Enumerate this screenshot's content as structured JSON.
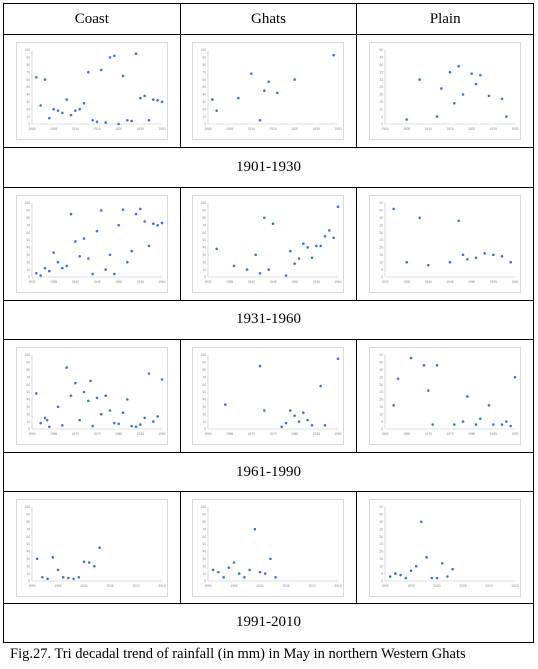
{
  "table": {
    "columns": [
      "Coast",
      "Ghats",
      "Plain"
    ]
  },
  "caption": "Fig.27. Tri decadal trend of rainfall (in mm) in May in northern Western Ghats",
  "periods": [
    {
      "label": "1901-1930",
      "charts": [
        {
          "type": "scatter",
          "region": "Coast",
          "xlim": [
            1900,
            1930
          ],
          "ylim": [
            0,
            100
          ],
          "xticks": [
            1900,
            1905,
            1910,
            1915,
            1920,
            1925,
            1930
          ],
          "yticks": [
            0,
            10,
            20,
            30,
            40,
            50,
            60,
            70,
            80,
            90,
            100
          ],
          "x": [
            1901,
            1902,
            1903,
            1904,
            1905,
            1906,
            1907,
            1908,
            1909,
            1910,
            1911,
            1912,
            1913,
            1914,
            1915,
            1916,
            1917,
            1918,
            1919,
            1920,
            1921,
            1922,
            1923,
            1924,
            1925,
            1926,
            1927,
            1928,
            1929,
            1930
          ],
          "y": [
            63,
            25,
            60,
            8,
            20,
            18,
            15,
            33,
            12,
            18,
            20,
            28,
            70,
            5,
            3,
            73,
            2,
            90,
            92,
            0,
            65,
            5,
            4,
            95,
            35,
            38,
            5,
            33,
            32,
            30
          ],
          "color": "#4472c4"
        },
        {
          "type": "scatter",
          "region": "Ghats",
          "xlim": [
            1900,
            1930
          ],
          "ylim": [
            0,
            100
          ],
          "xticks": [
            1900,
            1905,
            1910,
            1915,
            1920,
            1925,
            1930
          ],
          "yticks": [
            0,
            10,
            20,
            30,
            40,
            50,
            60,
            70,
            80,
            90,
            100
          ],
          "x": [
            1901,
            1902,
            1907,
            1910,
            1912,
            1913,
            1914,
            1916,
            1920,
            1929
          ],
          "y": [
            33,
            18,
            35,
            68,
            5,
            45,
            57,
            42,
            60,
            93
          ],
          "color": "#4472c4"
        },
        {
          "type": "scatter",
          "region": "Plain",
          "xlim": [
            1900,
            1930
          ],
          "ylim": [
            0,
            50
          ],
          "xticks": [
            1900,
            1905,
            1910,
            1915,
            1920,
            1925,
            1930
          ],
          "yticks": [
            0,
            5,
            10,
            15,
            20,
            25,
            30,
            35,
            40,
            45,
            50
          ],
          "x": [
            1905,
            1908,
            1912,
            1913,
            1915,
            1916,
            1917,
            1918,
            1920,
            1921,
            1922,
            1924,
            1927,
            1928
          ],
          "y": [
            3,
            30,
            5,
            24,
            35,
            14,
            39,
            20,
            34,
            27,
            33,
            19,
            17,
            5
          ],
          "color": "#4472c4"
        }
      ]
    },
    {
      "label": "1931-1960",
      "charts": [
        {
          "type": "scatter",
          "region": "Coast",
          "xlim": [
            1930,
            1960
          ],
          "ylim": [
            0,
            100
          ],
          "xticks": [
            1930,
            1935,
            1940,
            1945,
            1950,
            1955,
            1960
          ],
          "yticks": [
            0,
            10,
            20,
            30,
            40,
            50,
            60,
            70,
            80,
            90,
            100
          ],
          "x": [
            1931,
            1932,
            1933,
            1934,
            1935,
            1936,
            1937,
            1938,
            1939,
            1940,
            1941,
            1942,
            1943,
            1944,
            1945,
            1946,
            1947,
            1948,
            1949,
            1950,
            1951,
            1952,
            1953,
            1954,
            1955,
            1956,
            1957,
            1958,
            1959,
            1960
          ],
          "y": [
            5,
            2,
            12,
            8,
            33,
            20,
            12,
            15,
            85,
            48,
            28,
            52,
            25,
            4,
            62,
            90,
            10,
            30,
            4,
            70,
            91,
            20,
            35,
            85,
            92,
            75,
            42,
            72,
            70,
            73
          ],
          "color": "#4472c4"
        },
        {
          "type": "scatter",
          "region": "Ghats",
          "xlim": [
            1930,
            1960
          ],
          "ylim": [
            0,
            100
          ],
          "xticks": [
            1930,
            1935,
            1940,
            1945,
            1950,
            1955,
            1960
          ],
          "yticks": [
            0,
            10,
            20,
            30,
            40,
            50,
            60,
            70,
            80,
            90,
            100
          ],
          "x": [
            1932,
            1936,
            1939,
            1941,
            1942,
            1943,
            1944,
            1945,
            1948,
            1949,
            1950,
            1951,
            1952,
            1953,
            1954,
            1955,
            1956,
            1957,
            1958,
            1959,
            1960
          ],
          "y": [
            38,
            15,
            10,
            30,
            5,
            80,
            10,
            72,
            2,
            35,
            18,
            25,
            45,
            40,
            26,
            42,
            42,
            55,
            63,
            53,
            95
          ],
          "color": "#4472c4"
        },
        {
          "type": "scatter",
          "region": "Plain",
          "xlim": [
            1930,
            1960
          ],
          "ylim": [
            0,
            50
          ],
          "xticks": [
            1930,
            1935,
            1940,
            1945,
            1950,
            1955,
            1960
          ],
          "yticks": [
            0,
            5,
            10,
            15,
            20,
            25,
            30,
            35,
            40,
            45,
            50
          ],
          "x": [
            1932,
            1935,
            1938,
            1940,
            1945,
            1947,
            1948,
            1949,
            1951,
            1953,
            1955,
            1957,
            1959
          ],
          "y": [
            46,
            10,
            40,
            8,
            10,
            38,
            15,
            12,
            13,
            16,
            15,
            14,
            10
          ],
          "color": "#4472c4"
        }
      ]
    },
    {
      "label": "1961-1990",
      "charts": [
        {
          "type": "scatter",
          "region": "Coast",
          "xlim": [
            1960,
            1990
          ],
          "ylim": [
            0,
            100
          ],
          "xticks": [
            1960,
            1965,
            1970,
            1975,
            1980,
            1985,
            1990
          ],
          "yticks": [
            0,
            10,
            20,
            30,
            40,
            50,
            60,
            70,
            80,
            90,
            100
          ],
          "x": [
            1961,
            1962,
            1963,
            1964,
            1966,
            1967,
            1968,
            1969,
            1970,
            1971,
            1972,
            1973,
            1974,
            1975,
            1976,
            1977,
            1978,
            1979,
            1980,
            1981,
            1982,
            1983,
            1984,
            1985,
            1986,
            1987,
            1988,
            1989,
            1990,
            1963.5,
            1973.5
          ],
          "y": [
            48,
            8,
            15,
            3,
            30,
            5,
            83,
            45,
            62,
            12,
            50,
            38,
            4,
            42,
            20,
            45,
            25,
            8,
            7,
            22,
            40,
            4,
            3,
            6,
            15,
            75,
            10,
            17,
            67,
            12,
            65
          ],
          "color": "#4472c4"
        },
        {
          "type": "scatter",
          "region": "Ghats",
          "xlim": [
            1960,
            1990
          ],
          "ylim": [
            0,
            100
          ],
          "xticks": [
            1960,
            1965,
            1970,
            1975,
            1980,
            1985,
            1990
          ],
          "yticks": [
            0,
            10,
            20,
            30,
            40,
            50,
            60,
            70,
            80,
            90,
            100
          ],
          "x": [
            1964,
            1972,
            1973,
            1977,
            1978,
            1979,
            1980,
            1981,
            1982,
            1983,
            1984,
            1986,
            1987,
            1990
          ],
          "y": [
            33,
            85,
            25,
            3,
            8,
            25,
            18,
            10,
            22,
            12,
            5,
            58,
            5,
            95
          ],
          "color": "#4472c4"
        },
        {
          "type": "scatter",
          "region": "Plain",
          "xlim": [
            1960,
            1990
          ],
          "ylim": [
            0,
            50
          ],
          "xticks": [
            1960,
            1965,
            1970,
            1975,
            1980,
            1985,
            1990
          ],
          "yticks": [
            0,
            5,
            10,
            15,
            20,
            25,
            30,
            35,
            40,
            45,
            50
          ],
          "x": [
            1962,
            1963,
            1966,
            1969,
            1970,
            1971,
            1972,
            1976,
            1978,
            1979,
            1981,
            1982,
            1984,
            1985,
            1987,
            1988,
            1989,
            1990
          ],
          "y": [
            16,
            34,
            48,
            43,
            26,
            3,
            43,
            3,
            5,
            22,
            3,
            7,
            16,
            3,
            3,
            5,
            2,
            35
          ],
          "color": "#4472c4"
        }
      ]
    },
    {
      "label": "1991-2010",
      "charts": [
        {
          "type": "scatter",
          "region": "Coast",
          "xlim": [
            1990,
            2015
          ],
          "ylim": [
            0,
            100
          ],
          "xticks": [
            1990,
            1995,
            2000,
            2005,
            2010,
            2015
          ],
          "yticks": [
            0,
            10,
            20,
            30,
            40,
            50,
            60,
            70,
            80,
            90,
            100
          ],
          "x": [
            1991,
            1992,
            1993,
            1994,
            1995,
            1996,
            1997,
            1998,
            1999,
            2000,
            2001,
            2002,
            2003
          ],
          "y": [
            30,
            5,
            3,
            32,
            15,
            5,
            4,
            3,
            5,
            26,
            25,
            20,
            45
          ],
          "color": "#4472c4"
        },
        {
          "type": "scatter",
          "region": "Ghats",
          "xlim": [
            1990,
            2015
          ],
          "ylim": [
            0,
            100
          ],
          "xticks": [
            1990,
            1995,
            2000,
            2005,
            2010,
            2015
          ],
          "yticks": [
            0,
            10,
            20,
            30,
            40,
            50,
            60,
            70,
            80,
            90,
            100
          ],
          "x": [
            1991,
            1992,
            1993,
            1994,
            1995,
            1996,
            1997,
            1998,
            1999,
            2000,
            2001,
            2002,
            2003
          ],
          "y": [
            15,
            12,
            5,
            18,
            25,
            10,
            5,
            15,
            70,
            12,
            10,
            30,
            5
          ],
          "color": "#4472c4"
        },
        {
          "type": "scatter",
          "region": "Plain",
          "xlim": [
            1990,
            2015
          ],
          "ylim": [
            0,
            50
          ],
          "xticks": [
            1990,
            1995,
            2000,
            2005,
            2010,
            2015
          ],
          "yticks": [
            0,
            5,
            10,
            15,
            20,
            25,
            30,
            35,
            40,
            45,
            50
          ],
          "x": [
            1991,
            1992,
            1993,
            1994,
            1995,
            1996,
            1997,
            1998,
            1999,
            2000,
            2001,
            2002,
            2003
          ],
          "y": [
            3,
            5,
            4,
            2,
            7,
            10,
            40,
            16,
            2,
            2,
            12,
            3,
            8
          ],
          "color": "#4472c4"
        }
      ]
    }
  ]
}
